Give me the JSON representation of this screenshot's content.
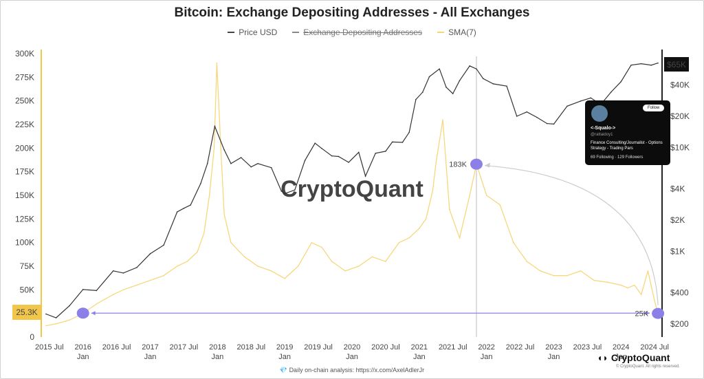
{
  "title": "Bitcoin: Exchange Depositing Addresses - All Exchanges",
  "legend": [
    {
      "label": "Price USD",
      "color": "#444444",
      "struck": false
    },
    {
      "label": "Exchange Depositing Addresses",
      "color": "#888888",
      "struck": true
    },
    {
      "label": "SMA(7)",
      "color": "#f5d77a",
      "struck": false
    }
  ],
  "colors": {
    "price": "#333333",
    "sma": "#f7d77c",
    "accent": "#8c7fe8",
    "left_axis": "#f2c64a",
    "price_badge": "#111111"
  },
  "left_axis_ticks": [
    "300K",
    "275K",
    "250K",
    "225K",
    "200K",
    "175K",
    "150K",
    "125K",
    "100K",
    "75K",
    "50K",
    "25K",
    "0"
  ],
  "left_axis_badge": "25.3K",
  "right_axis_ticks": [
    "$40K",
    "$20K",
    "$10K",
    "$4K",
    "$2K",
    "$1K",
    "$400",
    "$200"
  ],
  "right_axis_badge": "$65K",
  "x_ticks": [
    {
      "top": "2015 Jul",
      "bottom": ""
    },
    {
      "top": "2016",
      "bottom": "Jan"
    },
    {
      "top": "2016 Jul",
      "bottom": ""
    },
    {
      "top": "2017",
      "bottom": "Jan"
    },
    {
      "top": "2017 Jul",
      "bottom": ""
    },
    {
      "top": "2018",
      "bottom": "Jan"
    },
    {
      "top": "2018 Jul",
      "bottom": ""
    },
    {
      "top": "2019",
      "bottom": "Jan"
    },
    {
      "top": "2019 Jul",
      "bottom": ""
    },
    {
      "top": "2020",
      "bottom": "Jan"
    },
    {
      "top": "2020 Jul",
      "bottom": ""
    },
    {
      "top": "2021",
      "bottom": "Jan"
    },
    {
      "top": "2021 Jul",
      "bottom": ""
    },
    {
      "top": "2022",
      "bottom": "Jan"
    },
    {
      "top": "2022 Jul",
      "bottom": ""
    },
    {
      "top": "2023",
      "bottom": "Jan"
    },
    {
      "top": "2023 Jul",
      "bottom": ""
    },
    {
      "top": "2024",
      "bottom": "Jan"
    },
    {
      "top": "2024 Jul",
      "bottom": ""
    }
  ],
  "annotations": {
    "peak_label": "183K",
    "low_label": "25K"
  },
  "watermark": "CryptoQuant",
  "brand": "CryptoQuant",
  "brand_sub": "© CryptoQuant. All rights reserved.",
  "footer": "Daily on-chain analysis: https://x.com/AxelAdlerJr",
  "card": {
    "follow": "Follow",
    "name": "<-Squalo->",
    "handle": "@rattaidoy1",
    "bio": "Finance Consulting/Journalist - Options Strategy - Trading Pars",
    "stats": "69 Following · 129 Followers"
  },
  "chart_data": {
    "type": "line",
    "title": "Bitcoin: Exchange Depositing Addresses - All Exchanges",
    "xlabel": "",
    "ylabel_left": "",
    "ylabel_right": "",
    "ylim_left": [
      0,
      300000
    ],
    "y_right_scale": "log",
    "ylim_right": [
      150,
      80000
    ],
    "xlim": [
      2015.4,
      2024.6
    ],
    "legend_position": "top-center",
    "series": [
      {
        "name": "Price USD",
        "axis": "right",
        "x": [
          2015.45,
          2015.6,
          2015.8,
          2016.0,
          2016.2,
          2016.45,
          2016.6,
          2016.8,
          2017.0,
          2017.2,
          2017.4,
          2017.5,
          2017.6,
          2017.75,
          2017.85,
          2017.96,
          2018.1,
          2018.2,
          2018.35,
          2018.5,
          2018.6,
          2018.8,
          2018.95,
          2019.0,
          2019.15,
          2019.3,
          2019.45,
          2019.55,
          2019.7,
          2019.8,
          2019.95,
          2020.1,
          2020.2,
          2020.35,
          2020.5,
          2020.6,
          2020.75,
          2020.85,
          2020.95,
          2021.05,
          2021.15,
          2021.3,
          2021.4,
          2021.5,
          2021.6,
          2021.75,
          2021.85,
          2021.95,
          2022.1,
          2022.3,
          2022.45,
          2022.6,
          2022.75,
          2022.9,
          2023.0,
          2023.2,
          2023.4,
          2023.55,
          2023.7,
          2023.85,
          2024.0,
          2024.15,
          2024.3,
          2024.45,
          2024.55
        ],
        "values": [
          250,
          230,
          300,
          430,
          420,
          650,
          620,
          700,
          950,
          1150,
          2400,
          2600,
          2800,
          4500,
          7000,
          16000,
          9500,
          7000,
          8000,
          6500,
          7000,
          6400,
          3800,
          3600,
          3900,
          7500,
          11000,
          9800,
          8300,
          8200,
          7200,
          9000,
          5300,
          8800,
          9200,
          11300,
          11200,
          14000,
          29000,
          34000,
          48000,
          57000,
          38000,
          33000,
          44000,
          61000,
          57000,
          46000,
          41000,
          39000,
          20000,
          22000,
          19500,
          17000,
          16800,
          25000,
          28000,
          30000,
          26000,
          34000,
          43000,
          62000,
          64000,
          62000,
          65000
        ]
      },
      {
        "name": "SMA(7)",
        "axis": "left",
        "x": [
          2015.45,
          2015.6,
          2015.8,
          2016.0,
          2016.2,
          2016.45,
          2016.6,
          2016.8,
          2017.0,
          2017.2,
          2017.4,
          2017.55,
          2017.7,
          2017.8,
          2017.88,
          2017.95,
          2017.99,
          2018.05,
          2018.1,
          2018.2,
          2018.4,
          2018.6,
          2018.8,
          2019.0,
          2019.2,
          2019.4,
          2019.55,
          2019.7,
          2019.9,
          2020.1,
          2020.3,
          2020.5,
          2020.7,
          2020.85,
          2021.0,
          2021.1,
          2021.2,
          2021.25,
          2021.35,
          2021.45,
          2021.6,
          2021.75,
          2021.85,
          2022.0,
          2022.2,
          2022.4,
          2022.6,
          2022.8,
          2023.0,
          2023.2,
          2023.4,
          2023.6,
          2023.8,
          2024.0,
          2024.1,
          2024.2,
          2024.3,
          2024.4,
          2024.5,
          2024.55
        ],
        "values": [
          12000,
          14000,
          18000,
          25000,
          35000,
          45000,
          50000,
          55000,
          60000,
          65000,
          75000,
          80000,
          90000,
          110000,
          150000,
          200000,
          290000,
          200000,
          130000,
          100000,
          85000,
          75000,
          70000,
          62000,
          75000,
          100000,
          95000,
          80000,
          70000,
          75000,
          85000,
          80000,
          100000,
          105000,
          115000,
          125000,
          155000,
          185000,
          230000,
          135000,
          105000,
          150000,
          183000,
          150000,
          140000,
          100000,
          80000,
          70000,
          65000,
          65000,
          70000,
          60000,
          58000,
          55000,
          52000,
          55000,
          45000,
          70000,
          38000,
          25000
        ]
      }
    ],
    "annotations": [
      {
        "label": "183K",
        "x": 2021.85,
        "y": 183000
      },
      {
        "label": "25K",
        "x": 2024.55,
        "y": 25000
      },
      {
        "label": "25.3K",
        "x": 2016.0,
        "y": 25300
      }
    ]
  }
}
